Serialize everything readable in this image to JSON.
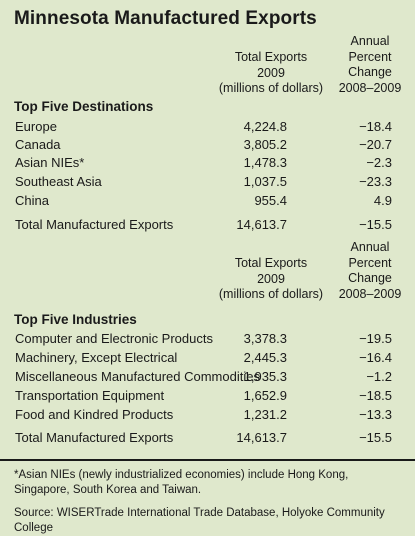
{
  "title": "Minnesota Manufactured Exports",
  "columns": {
    "exports_l1": "Total Exports",
    "exports_l2": "2009",
    "exports_l3": "(millions of dollars)",
    "change_l1": "Annual",
    "change_l2": "Percent",
    "change_l3": "Change",
    "change_l4": "2008–2009"
  },
  "destinations": {
    "label": "Top Five Destinations",
    "rows": [
      {
        "name": "Europe",
        "value": "4,224.8",
        "change": "−18.4"
      },
      {
        "name": "Canada",
        "value": "3,805.2",
        "change": "−20.7"
      },
      {
        "name": "Asian NIEs*",
        "value": "1,478.3",
        "change": "−2.3"
      },
      {
        "name": "Southeast Asia",
        "value": "1,037.5",
        "change": "−23.3"
      },
      {
        "name": "China",
        "value": "955.4",
        "change": "4.9"
      },
      {
        "name": "Total Manufactured Exports",
        "value": "14,613.7",
        "change": "−15.5"
      }
    ]
  },
  "industries": {
    "label": "Top Five Industries",
    "rows": [
      {
        "name": "Computer and Electronic Products",
        "value": "3,378.3",
        "change": "−19.5"
      },
      {
        "name": "Machinery, Except Electrical",
        "value": "2,445.3",
        "change": "−16.4"
      },
      {
        "name": "Miscellaneous Manufactured Commodities",
        "value": "1,935.3",
        "change": "−1.2"
      },
      {
        "name": "Transportation Equipment",
        "value": "1,652.9",
        "change": "−18.5"
      },
      {
        "name": "Food and Kindred Products",
        "value": "1,231.2",
        "change": "−13.3"
      },
      {
        "name": "Total Manufactured Exports",
        "value": "14,613.7",
        "change": "−15.5"
      }
    ]
  },
  "footnote": "*Asian NIEs (newly industrialized economies) include Hong Kong, Singapore, South Korea and Taiwan.",
  "source": "Source: WISERTrade International Trade Database, Holyoke Community College",
  "colors": {
    "background": "#dfe8cc",
    "text": "#1a1a1a"
  }
}
